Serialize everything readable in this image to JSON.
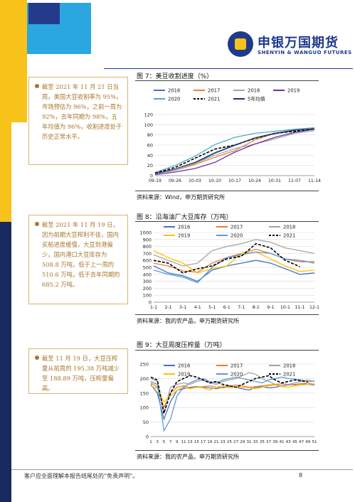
{
  "header": {
    "logo_cn": "申银万国期货",
    "logo_en": "SHENYIN & WANGUO FUTURES"
  },
  "notes": [
    {
      "text": "截至 2021 年 11 月 21 日当周，美国大豆收割率为 95%，市场预估为 96%，之前一周为 92%，去年同期为 98%，五年均值为 96%，收割进度处于历史正常水平。"
    },
    {
      "text": "截至 2021 年 11 月 19 日，因为前期大豆榨利不佳，国内买船进度缓慢，大豆到港偏少，国内港口大豆库存为 508.8 万吨，低于上一周的 510.6 万吨，低于去年同期的 685.2 万吨。"
    },
    {
      "text": "截至 11 月 19 日，大豆压榨量从前周的 195.38 万吨减少至 188.89 万吨，压榨量偏高。"
    }
  ],
  "figures": [
    {
      "title": "图 7：美豆收割进度（%）",
      "source": "资料来源：Wind，申万期货研究所"
    },
    {
      "title": "图 8：沿海油厂大豆库存（万吨）",
      "source": "资料来源：我的农产品，申万期货研究所"
    },
    {
      "title": "图 9：大豆周度压榨量（万吨）",
      "source": "资料来源：我的农产品，申万期货研究所"
    }
  ],
  "footer": {
    "text": "客户应全面理解本报告结尾处的“免责声明”。",
    "page": "8"
  },
  "chart_data": [
    {
      "type": "line",
      "title": "美豆收割进度（%）",
      "categories": [
        "09-19",
        "09-26",
        "10-03",
        "10-10",
        "10-17",
        "10-24",
        "10-31",
        "11-07",
        "11-14"
      ],
      "ylim": [
        0,
        120
      ],
      "yticks": [
        0,
        20,
        40,
        60,
        80,
        100,
        120
      ],
      "legend": "top",
      "series": [
        {
          "name": "2016",
          "color": "#4472c4",
          "dashed": false,
          "values": [
            4,
            10,
            24,
            44,
            59,
            74,
            82,
            89,
            93
          ]
        },
        {
          "name": "2017",
          "color": "#ed7d31",
          "dashed": false,
          "values": [
            4,
            10,
            22,
            36,
            49,
            70,
            83,
            90,
            93
          ]
        },
        {
          "name": "2018",
          "color": "#a5a5a5",
          "dashed": false,
          "values": [
            4,
            10,
            24,
            40,
            53,
            62,
            72,
            83,
            88
          ]
        },
        {
          "name": "2019",
          "color": "#7030a0",
          "dashed": false,
          "values": [
            2,
            7,
            14,
            26,
            46,
            62,
            75,
            85,
            91
          ]
        },
        {
          "name": "2020",
          "color": "#4bacc6",
          "dashed": false,
          "values": [
            6,
            20,
            38,
            61,
            75,
            83,
            87,
            91,
            94
          ]
        },
        {
          "name": "2021",
          "color": "#000000",
          "dashed": true,
          "values": [
            5,
            16,
            34,
            52,
            60,
            73,
            83,
            87,
            92
          ]
        },
        {
          "name": "5年均值",
          "color": "#203864",
          "dashed": false,
          "values": [
            4,
            13,
            26,
            45,
            60,
            74,
            83,
            89,
            92
          ]
        }
      ]
    },
    {
      "type": "line",
      "title": "沿海油厂大豆库存（万吨）",
      "categories": [
        "1-1",
        "2-1",
        "3-1",
        "4-1",
        "5-1",
        "6-1",
        "7-1",
        "8-1",
        "9-1",
        "10-1",
        "11-1",
        "12-1"
      ],
      "ylim": [
        0,
        1000
      ],
      "yticks": [
        0,
        100,
        200,
        300,
        400,
        500,
        600,
        700,
        800,
        900,
        1000
      ],
      "legend": "top",
      "series": [
        {
          "name": "2016",
          "color": "#4472c4",
          "dashed": false,
          "values": [
            520,
            420,
            380,
            300,
            460,
            520,
            560,
            600,
            560,
            480,
            400,
            420
          ]
        },
        {
          "name": "2017",
          "color": "#ed7d31",
          "dashed": false,
          "values": [
            560,
            520,
            450,
            430,
            560,
            640,
            700,
            760,
            700,
            620,
            580,
            580
          ]
        },
        {
          "name": "2018",
          "color": "#a5a5a5",
          "dashed": false,
          "values": [
            680,
            600,
            520,
            560,
            740,
            800,
            840,
            900,
            860,
            780,
            740,
            700
          ]
        },
        {
          "name": "2019",
          "color": "#ffc000",
          "dashed": false,
          "values": [
            740,
            640,
            560,
            420,
            480,
            520,
            700,
            720,
            620,
            520,
            440,
            460
          ]
        },
        {
          "name": "2020",
          "color": "#5b9bd5",
          "dashed": false,
          "values": [
            460,
            400,
            360,
            280,
            500,
            640,
            680,
            720,
            700,
            620,
            600,
            560
          ]
        },
        {
          "name": "2021",
          "color": "#000000",
          "dashed": true,
          "values": [
            600,
            560,
            420,
            480,
            520,
            620,
            660,
            840,
            780,
            600,
            510,
            null
          ]
        }
      ]
    },
    {
      "type": "line",
      "title": "大豆周度压榨量（万吨）",
      "categories": [
        "1",
        "3",
        "5",
        "7",
        "9",
        "11",
        "13",
        "15",
        "17",
        "19",
        "21",
        "23",
        "25",
        "27",
        "29",
        "31",
        "33",
        "35",
        "37",
        "39",
        "41",
        "43",
        "45",
        "47",
        "49",
        "51"
      ],
      "ylim": [
        0,
        250
      ],
      "yticks": [
        0,
        50,
        100,
        150,
        200,
        250
      ],
      "legend": "top",
      "series": [
        {
          "name": "2016",
          "color": "#4472c4",
          "dashed": false,
          "values": [
            180,
            150,
            60,
            120,
            160,
            165,
            170,
            172,
            170,
            168,
            165,
            170,
            175,
            170,
            165,
            160,
            170,
            172,
            168,
            170,
            175,
            178,
            180,
            182,
            180,
            178
          ]
        },
        {
          "name": "2017",
          "color": "#ed7d31",
          "dashed": false,
          "values": [
            185,
            170,
            100,
            150,
            170,
            175,
            168,
            170,
            172,
            175,
            170,
            168,
            172,
            178,
            175,
            170,
            172,
            175,
            178,
            180,
            182,
            180,
            178,
            182,
            185,
            180
          ]
        },
        {
          "name": "2018",
          "color": "#a5a5a5",
          "dashed": false,
          "values": [
            200,
            190,
            80,
            170,
            180,
            185,
            180,
            190,
            195,
            185,
            180,
            190,
            195,
            200,
            210,
            220,
            215,
            200,
            190,
            180,
            175,
            180,
            185,
            190,
            195,
            190
          ]
        },
        {
          "name": "2019",
          "color": "#ffc000",
          "dashed": false,
          "values": [
            175,
            165,
            120,
            140,
            160,
            170,
            165,
            170,
            168,
            160,
            170,
            175,
            168,
            172,
            170,
            168,
            165,
            170,
            175,
            178,
            172,
            170,
            175,
            178,
            180,
            182
          ]
        },
        {
          "name": "2020",
          "color": "#5b9bd5",
          "dashed": false,
          "values": [
            190,
            180,
            20,
            60,
            140,
            170,
            185,
            195,
            200,
            190,
            185,
            195,
            200,
            205,
            200,
            195,
            190,
            185,
            195,
            200,
            205,
            200,
            198,
            195,
            190,
            192
          ]
        },
        {
          "name": "2021",
          "color": "#000000",
          "dashed": true,
          "values": [
            205,
            195,
            80,
            150,
            190,
            200,
            210,
            205,
            195,
            185,
            190,
            180,
            175,
            170,
            180,
            190,
            200,
            205,
            210,
            195,
            185,
            190,
            195,
            192,
            189,
            null
          ]
        }
      ]
    }
  ]
}
